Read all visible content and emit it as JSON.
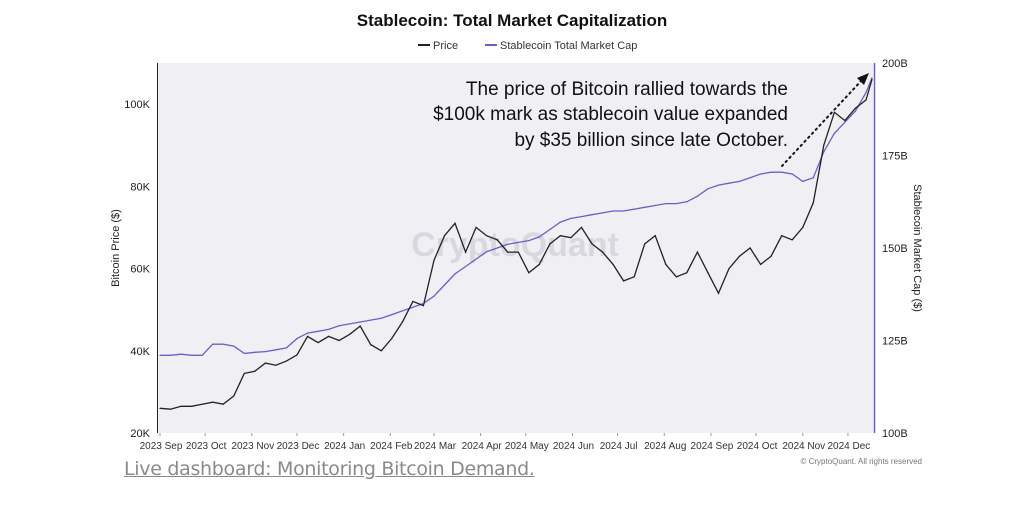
{
  "chart_data": {
    "type": "line",
    "title": "Stablecoin: Total Market Capitalization",
    "legend": [
      "Price",
      "Stablecoin Total Market Cap"
    ],
    "legend_placement": "top-center",
    "ylabel_left": "Bitcoin Price ($)",
    "ylabel_right": "Stablecoin Market Cap ($)",
    "y_left_ticks": [
      "20K",
      "40K",
      "60K",
      "80K",
      "100K"
    ],
    "y_left_range": [
      20000,
      110000
    ],
    "y_right_ticks": [
      "100B",
      "125B",
      "150B",
      "175B",
      "200B"
    ],
    "y_right_range": [
      100,
      200
    ],
    "x_ticks": [
      "2023 Sep",
      "2023 Oct",
      "2023 Nov",
      "2023 Dec",
      "2024 Jan",
      "2024 Feb",
      "2024 Mar",
      "2024 Apr",
      "2024 May",
      "2024 Jun",
      "2024 Jul",
      "2024 Aug",
      "2024 Sep",
      "2024 Oct",
      "2024 Nov",
      "2024 Dec"
    ],
    "x_range": [
      "2023-09-01",
      "2024-12-17"
    ],
    "grid": false,
    "colors": {
      "price": "#222222",
      "stablecoin": "#6a5fc8",
      "plot_bg": "#f0f0f4"
    },
    "dates": [
      "2023-09-01",
      "2023-09-08",
      "2023-09-15",
      "2023-09-22",
      "2023-09-29",
      "2023-10-06",
      "2023-10-13",
      "2023-10-20",
      "2023-10-27",
      "2023-11-03",
      "2023-11-10",
      "2023-11-17",
      "2023-11-24",
      "2023-12-01",
      "2023-12-08",
      "2023-12-15",
      "2023-12-22",
      "2023-12-29",
      "2024-01-05",
      "2024-01-12",
      "2024-01-19",
      "2024-01-26",
      "2024-02-02",
      "2024-02-09",
      "2024-02-16",
      "2024-02-23",
      "2024-03-01",
      "2024-03-08",
      "2024-03-15",
      "2024-03-22",
      "2024-03-29",
      "2024-04-05",
      "2024-04-12",
      "2024-04-19",
      "2024-04-26",
      "2024-05-03",
      "2024-05-10",
      "2024-05-17",
      "2024-05-24",
      "2024-05-31",
      "2024-06-07",
      "2024-06-14",
      "2024-06-21",
      "2024-06-28",
      "2024-07-05",
      "2024-07-12",
      "2024-07-19",
      "2024-07-26",
      "2024-08-02",
      "2024-08-09",
      "2024-08-16",
      "2024-08-23",
      "2024-08-30",
      "2024-09-06",
      "2024-09-13",
      "2024-09-20",
      "2024-09-27",
      "2024-10-04",
      "2024-10-11",
      "2024-10-18",
      "2024-10-25",
      "2024-11-01",
      "2024-11-08",
      "2024-11-15",
      "2024-11-22",
      "2024-11-29",
      "2024-12-06",
      "2024-12-13",
      "2024-12-17"
    ],
    "series": [
      {
        "name": "Price",
        "axis": "left",
        "values": [
          26000,
          25800,
          26500,
          26500,
          27000,
          27500,
          27000,
          29000,
          34500,
          35000,
          37000,
          36500,
          37500,
          39000,
          43500,
          42000,
          43500,
          42500,
          44000,
          46000,
          41500,
          40000,
          43000,
          47000,
          52000,
          51000,
          62000,
          68000,
          71000,
          64000,
          70000,
          68000,
          67000,
          64000,
          64000,
          59000,
          61000,
          66000,
          68000,
          67500,
          70000,
          66000,
          64000,
          61000,
          57000,
          58000,
          66000,
          68000,
          61000,
          58000,
          59000,
          64000,
          59000,
          54000,
          60000,
          63000,
          65000,
          61000,
          63000,
          68000,
          67000,
          70000,
          76000,
          90000,
          98000,
          96000,
          99000,
          101000,
          106000
        ]
      },
      {
        "name": "Stablecoin Total Market Cap",
        "axis": "right",
        "values": [
          121,
          121,
          121.3,
          121,
          121,
          124,
          124,
          123.5,
          121.5,
          121.8,
          122,
          122.5,
          123,
          125.5,
          127,
          127.5,
          128,
          129,
          129.5,
          130,
          130.5,
          131,
          132,
          133,
          134,
          135,
          137,
          140,
          143,
          145,
          147,
          149,
          150,
          151,
          151.5,
          152,
          153,
          155,
          157,
          158,
          158.5,
          159,
          159.5,
          160,
          160,
          160.5,
          161,
          161.5,
          162,
          162,
          162.5,
          164,
          166,
          167,
          167.5,
          168,
          169,
          170,
          170.5,
          170.5,
          170,
          168,
          169,
          176,
          181,
          184,
          187,
          192,
          196
        ]
      }
    ],
    "annotation": [
      "The price of Bitcoin rallied towards the",
      "$100k mark as stablecoin value expanded",
      "by $35 billion since late October."
    ],
    "watermark": "CryptoQuant",
    "copyright": "© CryptoQuant. All rights reserved"
  },
  "footer": {
    "link_text": "Live dashboard: Monitoring Bitcoin Demand."
  }
}
